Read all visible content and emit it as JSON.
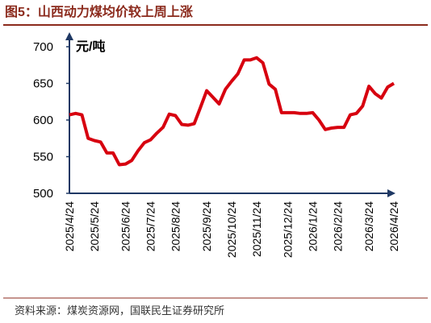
{
  "chart_data": {
    "type": "line",
    "title": "图5：山西动力煤均价较上周上涨",
    "y_label": "元/吨",
    "source": "资料来源：煤炭资源网，国联民生证券研究所",
    "categories": [
      "2025/4/24",
      null,
      null,
      null,
      "2025/5/24",
      null,
      null,
      null,
      null,
      "2025/6/24",
      null,
      null,
      null,
      "2025/7/24",
      null,
      null,
      null,
      "2025/8/24",
      null,
      null,
      null,
      null,
      "2025/9/24",
      null,
      null,
      null,
      "2025/10/24",
      null,
      null,
      null,
      "2025/11/24",
      null,
      null,
      null,
      null,
      "2025/12/24",
      null,
      null,
      null,
      "2026/1/24",
      null,
      null,
      null,
      "2026/2/24",
      null,
      null,
      null,
      null,
      "2026/3/24",
      null,
      null,
      null,
      "2026/4/24"
    ],
    "series": [
      {
        "name": "山西动力煤均价",
        "color": "#d7000f",
        "values": [
          607,
          609,
          607,
          575,
          572,
          570,
          555,
          555,
          539,
          540,
          545,
          558,
          569,
          573,
          582,
          590,
          608,
          606,
          594,
          593,
          595,
          617,
          640,
          631,
          622,
          642,
          653,
          663,
          682,
          682,
          685,
          678,
          649,
          642,
          610,
          610,
          610,
          609,
          609,
          610,
          600,
          587,
          589,
          590,
          590,
          607,
          609,
          619,
          646,
          636,
          630,
          645,
          650
        ]
      }
    ],
    "ylim": [
      500,
      700
    ],
    "yticks": [
      500,
      550,
      600,
      650,
      700
    ],
    "grid": false
  }
}
